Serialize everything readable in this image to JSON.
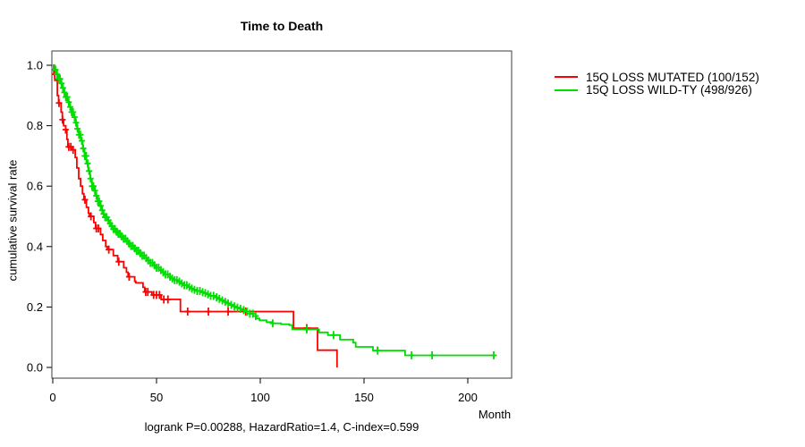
{
  "title": "Time to Death",
  "footer": "logrank P=0.00288, HazardRatio=1.4, C-index=0.599",
  "axes": {
    "ylabel": "cumulative survival rate",
    "xlabel": "Month"
  },
  "chart_data": {
    "type": "line",
    "subtype": "kaplan-meier-step-curves",
    "title": "Time to Death",
    "xlabel": "Month",
    "ylabel": "cumulative survival rate",
    "xlim": [
      0,
      221
    ],
    "ylim": [
      0,
      1
    ],
    "x_ticks": [
      0,
      50,
      100,
      150,
      200
    ],
    "y_ticks": [
      0.0,
      0.2,
      0.4,
      0.6,
      0.8,
      1.0
    ],
    "grid": false,
    "legend_position": "outside-top-right",
    "annotation": "logrank P=0.00288, HazardRatio=1.4, C-index=0.599",
    "axis_color": "#000000",
    "box_color": "#3d3d3d",
    "series": [
      {
        "name": "15Q LOSS MUTATED (100/152)",
        "color": "#ff0000",
        "end_month": 137,
        "steps": [
          [
            0,
            1.0
          ],
          [
            0.5,
            0.97
          ],
          [
            1.0,
            0.95
          ],
          [
            2.2,
            0.9
          ],
          [
            2.8,
            0.875
          ],
          [
            4.0,
            0.845
          ],
          [
            4.6,
            0.82
          ],
          [
            5.2,
            0.8
          ],
          [
            6.2,
            0.787
          ],
          [
            6.8,
            0.755
          ],
          [
            7.3,
            0.73
          ],
          [
            9.0,
            0.72
          ],
          [
            10.8,
            0.695
          ],
          [
            11.6,
            0.66
          ],
          [
            12.5,
            0.625
          ],
          [
            13.4,
            0.6
          ],
          [
            14.3,
            0.575
          ],
          [
            15.0,
            0.555
          ],
          [
            16.2,
            0.53
          ],
          [
            17.2,
            0.51
          ],
          [
            17.7,
            0.5
          ],
          [
            19.8,
            0.48
          ],
          [
            20.6,
            0.46
          ],
          [
            23.0,
            0.44
          ],
          [
            24.1,
            0.42
          ],
          [
            25.5,
            0.4
          ],
          [
            26.3,
            0.39
          ],
          [
            29.2,
            0.37
          ],
          [
            31.3,
            0.35
          ],
          [
            34.2,
            0.33
          ],
          [
            35.5,
            0.315
          ],
          [
            36.3,
            0.3
          ],
          [
            39.5,
            0.285
          ],
          [
            40.0,
            0.28
          ],
          [
            43.5,
            0.265
          ],
          [
            44.3,
            0.25
          ],
          [
            47.8,
            0.24
          ],
          [
            52.2,
            0.225
          ],
          [
            61.5,
            0.185
          ],
          [
            116.0,
            0.13
          ],
          [
            127.6,
            0.057
          ],
          [
            137.0,
            0.0
          ]
        ],
        "censor_months": [
          0.9,
          3.0,
          4.7,
          6.2,
          7.7,
          8.7,
          9.8,
          15.5,
          18.4,
          21.0,
          22.0,
          27.0,
          31.8,
          36.8,
          44.8,
          45.8,
          48.6,
          50.0,
          51.4,
          53.5,
          55.5,
          65.0,
          75.0,
          84.5,
          93.0,
          122.4
        ]
      },
      {
        "name": "15Q LOSS WILD-TY (498/926)",
        "color": "#00dd00",
        "end_month": 213,
        "steps": [
          [
            0,
            1.0
          ],
          [
            0.9,
            0.985
          ],
          [
            1.8,
            0.97
          ],
          [
            2.7,
            0.955
          ],
          [
            3.6,
            0.94
          ],
          [
            4.5,
            0.925
          ],
          [
            5.4,
            0.91
          ],
          [
            6.3,
            0.895
          ],
          [
            7.2,
            0.878
          ],
          [
            8.1,
            0.862
          ],
          [
            9.0,
            0.845
          ],
          [
            9.9,
            0.828
          ],
          [
            10.8,
            0.81
          ],
          [
            11.7,
            0.79
          ],
          [
            12.6,
            0.77
          ],
          [
            13.5,
            0.75
          ],
          [
            14.4,
            0.725
          ],
          [
            15.3,
            0.7
          ],
          [
            16.2,
            0.675
          ],
          [
            17.1,
            0.65
          ],
          [
            18.0,
            0.625
          ],
          [
            18.9,
            0.6
          ],
          [
            19.8,
            0.585
          ],
          [
            20.7,
            0.568
          ],
          [
            21.6,
            0.55
          ],
          [
            22.5,
            0.535
          ],
          [
            23.4,
            0.52
          ],
          [
            24.3,
            0.508
          ],
          [
            25.2,
            0.497
          ],
          [
            26.1,
            0.487
          ],
          [
            27.0,
            0.477
          ],
          [
            28.1,
            0.468
          ],
          [
            29.2,
            0.458
          ],
          [
            30.3,
            0.449
          ],
          [
            31.5,
            0.442
          ],
          [
            32.7,
            0.434
          ],
          [
            33.9,
            0.426
          ],
          [
            35.1,
            0.418
          ],
          [
            36.3,
            0.41
          ],
          [
            37.6,
            0.402
          ],
          [
            38.9,
            0.394
          ],
          [
            40.2,
            0.386
          ],
          [
            41.5,
            0.378
          ],
          [
            42.8,
            0.37
          ],
          [
            44.1,
            0.362
          ],
          [
            45.5,
            0.354
          ],
          [
            46.9,
            0.346
          ],
          [
            48.3,
            0.338
          ],
          [
            49.7,
            0.33
          ],
          [
            51.1,
            0.322
          ],
          [
            52.5,
            0.315
          ],
          [
            54.0,
            0.308
          ],
          [
            55.5,
            0.3
          ],
          [
            57.0,
            0.294
          ],
          [
            58.5,
            0.289
          ],
          [
            60.0,
            0.284
          ],
          [
            61.6,
            0.278
          ],
          [
            63.2,
            0.272
          ],
          [
            64.8,
            0.266
          ],
          [
            66.4,
            0.261
          ],
          [
            68.0,
            0.257
          ],
          [
            69.6,
            0.253
          ],
          [
            71.2,
            0.249
          ],
          [
            72.8,
            0.246
          ],
          [
            74.4,
            0.242
          ],
          [
            76.0,
            0.237
          ],
          [
            77.6,
            0.232
          ],
          [
            79.2,
            0.227
          ],
          [
            80.8,
            0.222
          ],
          [
            82.4,
            0.217
          ],
          [
            84.0,
            0.212
          ],
          [
            85.6,
            0.207
          ],
          [
            87.2,
            0.202
          ],
          [
            88.8,
            0.198
          ],
          [
            90.4,
            0.194
          ],
          [
            92.0,
            0.19
          ],
          [
            93.5,
            0.185
          ],
          [
            95.0,
            0.178
          ],
          [
            96.5,
            0.17
          ],
          [
            98.0,
            0.162
          ],
          [
            99.6,
            0.156
          ],
          [
            103.0,
            0.15
          ],
          [
            106.0,
            0.146
          ],
          [
            110.0,
            0.143
          ],
          [
            114.0,
            0.14
          ],
          [
            115.4,
            0.126
          ],
          [
            128.3,
            0.116
          ],
          [
            132.6,
            0.107
          ],
          [
            138.4,
            0.092
          ],
          [
            144.8,
            0.082
          ],
          [
            146.0,
            0.068
          ],
          [
            154.3,
            0.056
          ],
          [
            169.8,
            0.04
          ]
        ],
        "censor_months": [
          1.3,
          2.1,
          2.8,
          3.5,
          4.2,
          4.9,
          5.6,
          6.3,
          7.0,
          7.7,
          8.4,
          9.1,
          9.8,
          10.5,
          11.2,
          11.9,
          12.6,
          13.3,
          14.0,
          14.7,
          15.4,
          16.1,
          16.8,
          17.5,
          18.2,
          18.9,
          19.6,
          20.3,
          21.0,
          21.7,
          22.4,
          23.1,
          23.8,
          24.5,
          25.2,
          26.0,
          26.8,
          27.6,
          28.4,
          29.2,
          30.0,
          30.8,
          31.6,
          32.4,
          33.2,
          34.1,
          35.0,
          35.9,
          36.8,
          37.7,
          38.6,
          39.5,
          40.4,
          41.3,
          42.2,
          43.1,
          44.0,
          45.0,
          46.0,
          47.0,
          48.0,
          49.0,
          50.0,
          51.0,
          52.1,
          53.2,
          54.3,
          55.4,
          56.5,
          57.6,
          58.7,
          59.8,
          61.0,
          62.2,
          63.4,
          64.6,
          65.8,
          67.0,
          68.3,
          69.6,
          70.9,
          72.2,
          73.5,
          74.8,
          76.1,
          77.5,
          78.9,
          80.3,
          81.7,
          83.1,
          84.5,
          86.0,
          87.5,
          89.0,
          90.5,
          92.0,
          93.5,
          95.0,
          96.4,
          97.8,
          106.0,
          122.4,
          135.3,
          156.5,
          172.9,
          182.8,
          212.5
        ]
      }
    ]
  }
}
